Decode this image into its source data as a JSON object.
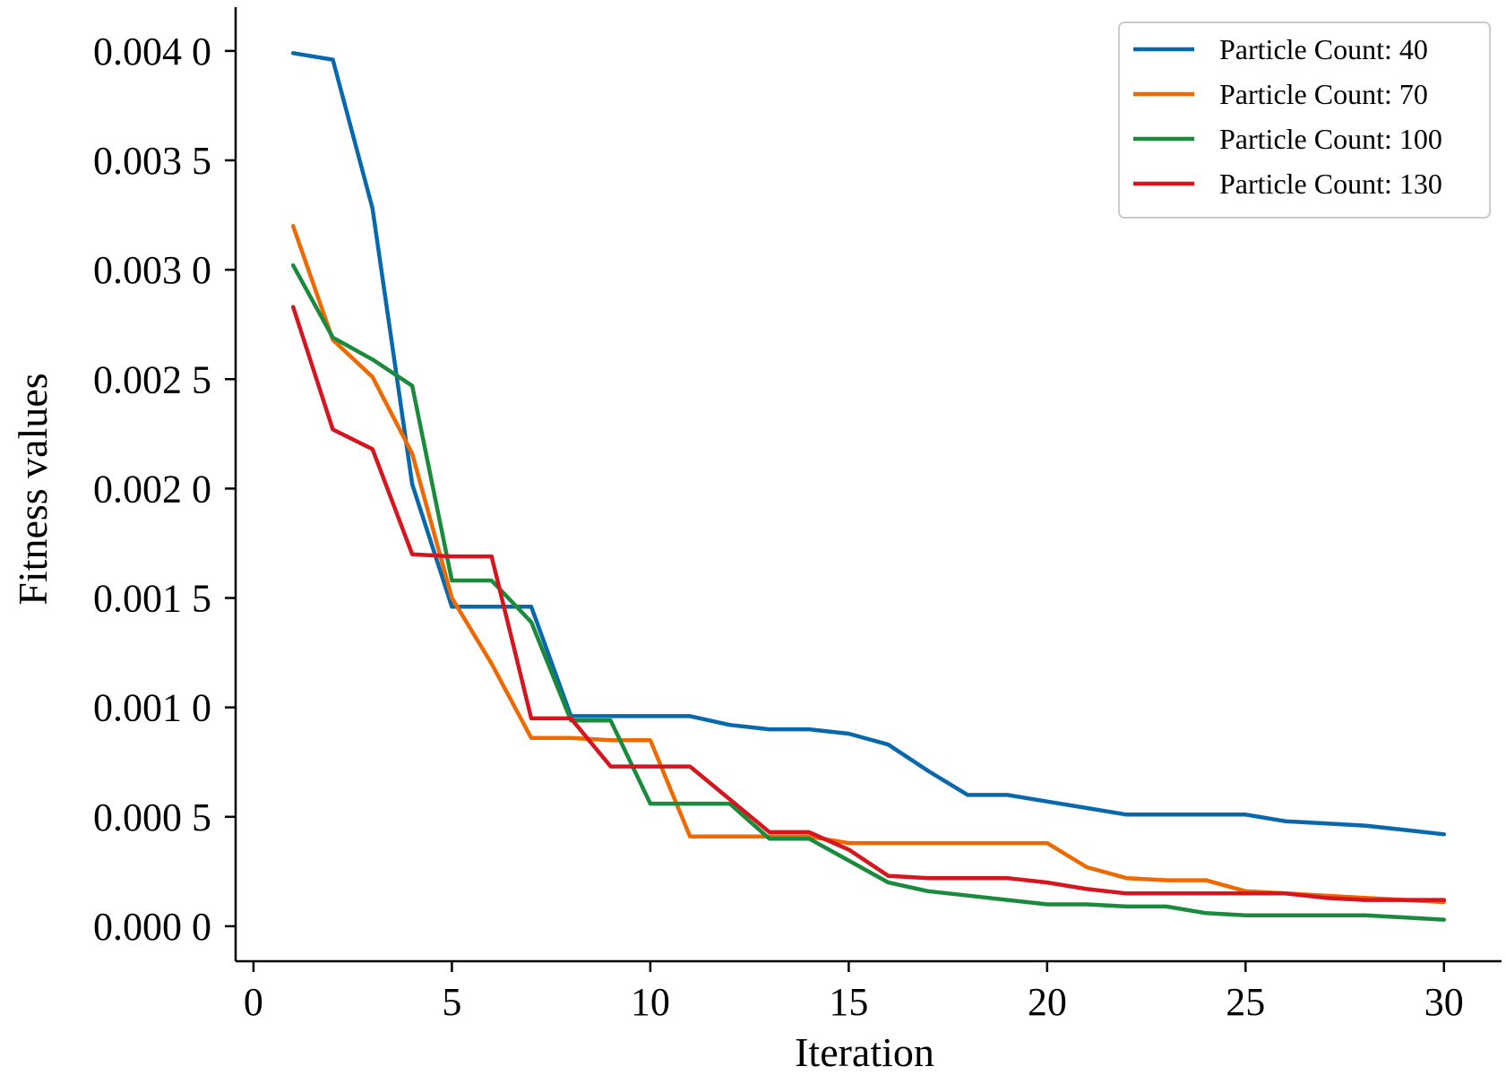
{
  "chart_data": {
    "type": "line",
    "title": "",
    "xlabel": "Iteration",
    "ylabel": "Fitness values",
    "xlim": [
      -0.45,
      31.45
    ],
    "ylim": [
      -0.00016,
      0.0042
    ],
    "xticks": [
      0,
      5,
      10,
      15,
      20,
      25,
      30
    ],
    "xtick_labels": [
      "0",
      "5",
      "10",
      "15",
      "20",
      "25",
      "30"
    ],
    "yticks": [
      0.0,
      0.0005,
      0.001,
      0.0015,
      0.002,
      0.0025,
      0.003,
      0.0035,
      0.004
    ],
    "ytick_labels": [
      "0.000 0",
      "0.000 5",
      "0.001 0",
      "0.001 5",
      "0.002 0",
      "0.002 5",
      "0.003 0",
      "0.003 5",
      "0.004 0"
    ],
    "grid": false,
    "legend_position": "top-right",
    "x": [
      1,
      2,
      3,
      4,
      5,
      6,
      7,
      8,
      9,
      10,
      11,
      12,
      13,
      14,
      15,
      16,
      17,
      18,
      19,
      20,
      21,
      22,
      23,
      24,
      25,
      26,
      27,
      28,
      29,
      30
    ],
    "series": [
      {
        "name": "Particle Count: 40",
        "color": "#0868ac",
        "values": [
          0.00399,
          0.00396,
          0.00328,
          0.00202,
          0.00146,
          0.00146,
          0.00146,
          0.00096,
          0.00096,
          0.00096,
          0.00096,
          0.00092,
          0.0009,
          0.0009,
          0.00088,
          0.00083,
          0.00071,
          0.0006,
          0.0006,
          0.00057,
          0.00054,
          0.00051,
          0.00051,
          0.00051,
          0.00051,
          0.00048,
          0.00047,
          0.00046,
          0.00044,
          0.00042
        ]
      },
      {
        "name": "Particle Count: 70",
        "color": "#ee6a00",
        "values": [
          0.0032,
          0.00268,
          0.00251,
          0.00216,
          0.0015,
          0.0012,
          0.00086,
          0.00086,
          0.00085,
          0.00085,
          0.00041,
          0.00041,
          0.00041,
          0.00041,
          0.00038,
          0.00038,
          0.00038,
          0.00038,
          0.00038,
          0.00038,
          0.00027,
          0.00022,
          0.00021,
          0.00021,
          0.00016,
          0.00015,
          0.00014,
          0.00013,
          0.00012,
          0.00011
        ]
      },
      {
        "name": "Particle Count: 100",
        "color": "#1a8a3c",
        "values": [
          0.00302,
          0.00269,
          0.00259,
          0.00247,
          0.00158,
          0.00158,
          0.00139,
          0.00094,
          0.00094,
          0.00056,
          0.00056,
          0.00056,
          0.0004,
          0.0004,
          0.0003,
          0.0002,
          0.00016,
          0.00014,
          0.00012,
          0.0001,
          0.0001,
          9e-05,
          9e-05,
          6e-05,
          5e-05,
          5e-05,
          5e-05,
          5e-05,
          4e-05,
          3e-05
        ]
      },
      {
        "name": "Particle Count: 130",
        "color": "#d7151f",
        "values": [
          0.00283,
          0.00227,
          0.00218,
          0.0017,
          0.00169,
          0.00169,
          0.00095,
          0.00095,
          0.00073,
          0.00073,
          0.00073,
          0.00058,
          0.00043,
          0.00043,
          0.00035,
          0.00023,
          0.00022,
          0.00022,
          0.00022,
          0.0002,
          0.00017,
          0.00015,
          0.00015,
          0.00015,
          0.00015,
          0.00015,
          0.00013,
          0.00012,
          0.00012,
          0.00012
        ]
      }
    ]
  }
}
